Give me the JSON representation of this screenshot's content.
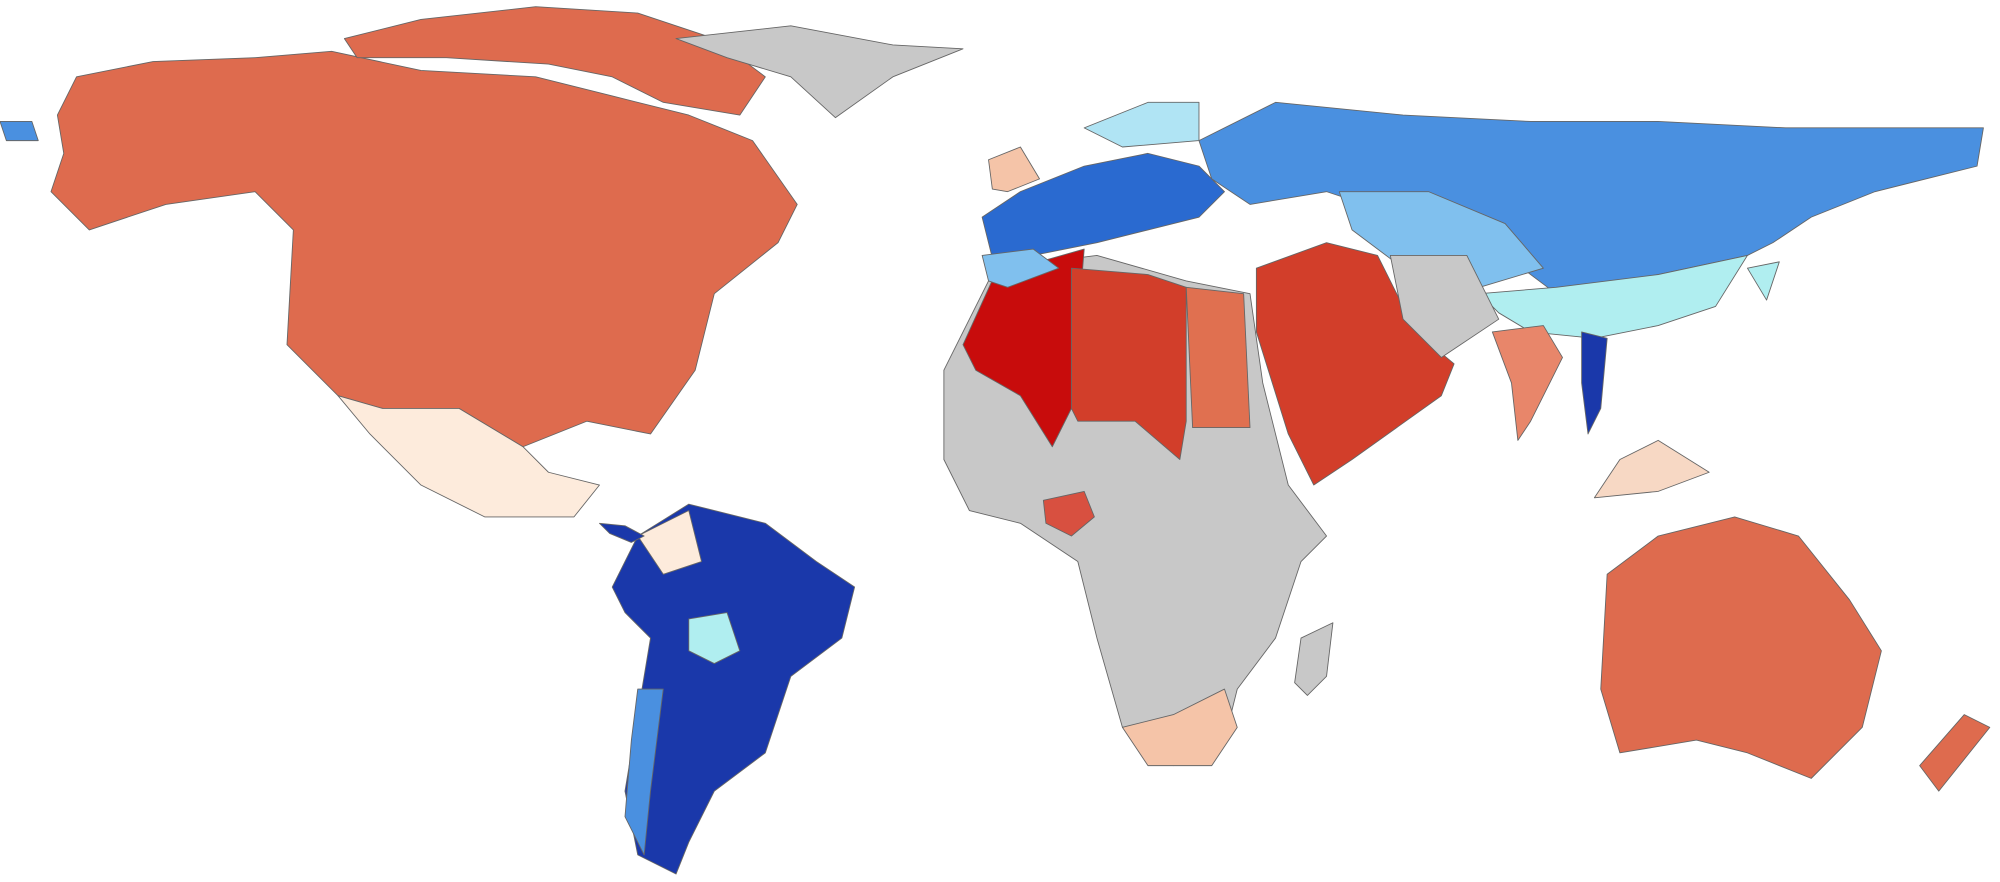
{
  "regions": [
    {
      "color": "#de6b4e"
    },
    {
      "color": "#de6b4e"
    },
    {
      "color": "#c8c8c8"
    },
    {
      "color": "#fdebdc"
    },
    {
      "color": "#1a38aa"
    },
    {
      "color": "#4a90e0"
    },
    {
      "color": "#b0eef0"
    },
    {
      "color": "#fdebdc"
    },
    {
      "color": "#c8c8c8"
    },
    {
      "color": "#c80c0c"
    },
    {
      "color": "#d23e2a"
    },
    {
      "color": "#e07050"
    },
    {
      "color": "#d23e2a"
    },
    {
      "color": "#f5c4a8"
    },
    {
      "color": "#d85040"
    },
    {
      "color": "#c8c8c8"
    },
    {
      "color": "#4a90e0"
    },
    {
      "color": "#2a6ad0"
    },
    {
      "color": "#80c0ee"
    },
    {
      "color": "#f5c4a8"
    },
    {
      "color": "#b0e4f4"
    },
    {
      "color": "#80c0ee"
    },
    {
      "color": "#b0eef0"
    },
    {
      "color": "#c8c8c8"
    },
    {
      "color": "#e8866a"
    },
    {
      "color": "#1a38aa"
    },
    {
      "color": "#f7d8c4"
    },
    {
      "color": "#de6b4e"
    },
    {
      "color": "#de6b4e"
    },
    {
      "color": "#b0eef0"
    },
    {
      "color": "#4a90e0"
    },
    {
      "color": "#1a38aa"
    }
  ]
}
